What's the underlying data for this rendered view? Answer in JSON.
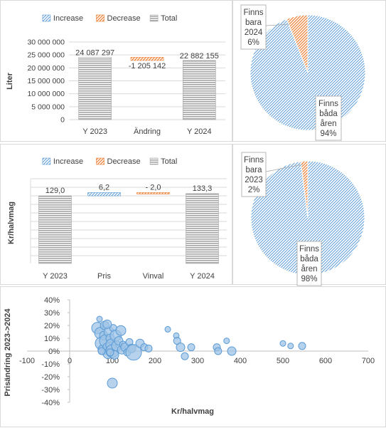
{
  "colors": {
    "increase": "#5b9bd5",
    "decrease": "#ed7d31",
    "total": "#a5a5a5",
    "grid": "#d9d9d9",
    "bubble_fill": "#9dc3e6",
    "bubble_stroke": "#5b9bd5",
    "pie_fill": "#9dc3e6"
  },
  "chart_data": [
    {
      "type": "waterfall",
      "ylabel": "Liter",
      "legend": [
        "Increase",
        "Decrease",
        "Total"
      ],
      "legend_position": "top",
      "ylim": [
        0,
        30000000
      ],
      "yticks": [
        "0",
        "5 000 000",
        "10 000 000",
        "15 000 000",
        "20 000 000",
        "25 000 000",
        "30 000 000"
      ],
      "categories": [
        "Y 2023",
        "Ändring",
        "Y 2024"
      ],
      "values": [
        24087297,
        -1205142,
        22882155
      ],
      "kinds": [
        "total",
        "decrease",
        "total"
      ],
      "data_labels": [
        "24 087 297",
        "-1 205 142",
        "22 882 155"
      ],
      "grid": true
    },
    {
      "type": "pie",
      "slices": [
        {
          "label": "Finns bara 2024",
          "lines": [
            "Finns",
            "bara",
            "2024",
            "6%"
          ],
          "value": 6
        },
        {
          "label": "Finns båda åren",
          "lines": [
            "Finns",
            "båda",
            "åren",
            "94%"
          ],
          "value": 94
        }
      ]
    },
    {
      "type": "waterfall",
      "ylabel": "Kr/halvmag",
      "legend": [
        "Increase",
        "Decrease",
        "Total"
      ],
      "legend_position": "top",
      "categories": [
        "Y 2023",
        "Pris",
        "Vinval",
        "Y 2024"
      ],
      "values": [
        129.0,
        6.2,
        -2.0,
        133.3
      ],
      "kinds": [
        "total",
        "increase",
        "decrease",
        "total"
      ],
      "data_labels": [
        "129,0",
        "6,2",
        "- 2,0",
        "133,3"
      ],
      "grid": true
    },
    {
      "type": "pie",
      "slices": [
        {
          "label": "Finns bara 2023",
          "lines": [
            "Finns",
            "bara",
            "2023",
            "2%"
          ],
          "value": 2
        },
        {
          "label": "Finns båda åren",
          "lines": [
            "Finns",
            "båda",
            "åren",
            "98%"
          ],
          "value": 98
        }
      ]
    },
    {
      "type": "scatter",
      "xlabel": "Kr/halvmag",
      "ylabel": "Prisändring 2023->2024",
      "xlim": [
        -100,
        700
      ],
      "ylim": [
        -40,
        40
      ],
      "xticks": [
        "-100",
        "0",
        "100",
        "200",
        "300",
        "400",
        "500",
        "600",
        "700"
      ],
      "yticks": [
        "-40%",
        "-30%",
        "-20%",
        "-10%",
        "0%",
        "10%",
        "20%",
        "30%",
        "40%"
      ],
      "grid": false,
      "points": [
        {
          "x": 65,
          "y": 18,
          "r": 8
        },
        {
          "x": 70,
          "y": 25,
          "r": 4
        },
        {
          "x": 72,
          "y": 14,
          "r": 8
        },
        {
          "x": 75,
          "y": 6,
          "r": 9
        },
        {
          "x": 78,
          "y": 1,
          "r": 7
        },
        {
          "x": 80,
          "y": 12,
          "r": 6
        },
        {
          "x": 82,
          "y": 20,
          "r": 6
        },
        {
          "x": 85,
          "y": 8,
          "r": 9
        },
        {
          "x": 88,
          "y": 3,
          "r": 6
        },
        {
          "x": 90,
          "y": -2,
          "r": 7
        },
        {
          "x": 92,
          "y": 15,
          "r": 7
        },
        {
          "x": 95,
          "y": 10,
          "r": 6
        },
        {
          "x": 98,
          "y": 5,
          "r": 8
        },
        {
          "x": 100,
          "y": 0,
          "r": 9
        },
        {
          "x": 102,
          "y": 18,
          "r": 5
        },
        {
          "x": 105,
          "y": -3,
          "r": 6
        },
        {
          "x": 108,
          "y": 12,
          "r": 8
        },
        {
          "x": 110,
          "y": 4,
          "r": 7
        },
        {
          "x": 115,
          "y": 8,
          "r": 6
        },
        {
          "x": 120,
          "y": 16,
          "r": 7
        },
        {
          "x": 122,
          "y": 1,
          "r": 6
        },
        {
          "x": 125,
          "y": 5,
          "r": 5
        },
        {
          "x": 130,
          "y": 3,
          "r": 6
        },
        {
          "x": 135,
          "y": -1,
          "r": 5
        },
        {
          "x": 140,
          "y": 7,
          "r": 5
        },
        {
          "x": 145,
          "y": 2,
          "r": 6
        },
        {
          "x": 150,
          "y": -1,
          "r": 11
        },
        {
          "x": 165,
          "y": 6,
          "r": 6
        },
        {
          "x": 175,
          "y": 3,
          "r": 5
        },
        {
          "x": 185,
          "y": 2,
          "r": 5
        },
        {
          "x": 75,
          "y": 0,
          "r": 5
        },
        {
          "x": 95,
          "y": -1,
          "r": 5
        },
        {
          "x": 88,
          "y": 21,
          "r": 6
        },
        {
          "x": 100,
          "y": -25,
          "r": 7
        },
        {
          "x": 230,
          "y": 17,
          "r": 4
        },
        {
          "x": 250,
          "y": 12,
          "r": 4
        },
        {
          "x": 252,
          "y": 8,
          "r": 5
        },
        {
          "x": 260,
          "y": 3,
          "r": 6
        },
        {
          "x": 270,
          "y": -4,
          "r": 5
        },
        {
          "x": 285,
          "y": 3,
          "r": 5
        },
        {
          "x": 345,
          "y": 3,
          "r": 5
        },
        {
          "x": 348,
          "y": 0,
          "r": 5
        },
        {
          "x": 368,
          "y": 8,
          "r": 4
        },
        {
          "x": 380,
          "y": 0,
          "r": 6
        },
        {
          "x": 500,
          "y": 6,
          "r": 4
        },
        {
          "x": 518,
          "y": 4,
          "r": 4
        },
        {
          "x": 545,
          "y": 4,
          "r": 5
        }
      ]
    }
  ]
}
